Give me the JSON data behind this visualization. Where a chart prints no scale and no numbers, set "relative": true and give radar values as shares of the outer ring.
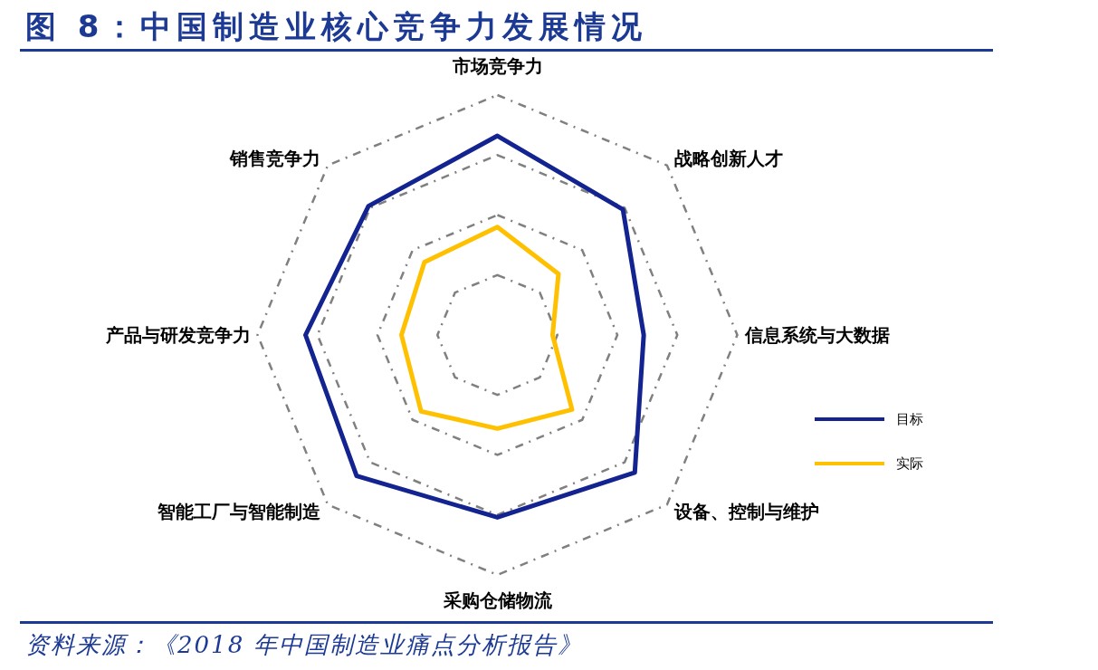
{
  "chart_data": {
    "type": "radar",
    "title": "图 8：中国制造业核心竞争力发展情况",
    "categories": [
      "市场竞争力",
      "战略创新人才",
      "信息系统与大数据",
      "设备、控制与维护",
      "采购仓储物流",
      "智能工厂与智能制造",
      "产品与研发竞争力",
      "销售竞争力"
    ],
    "relative": true,
    "series": [
      {
        "name": "目标",
        "color": "#13238f",
        "values": [
          0.83,
          0.74,
          0.61,
          0.81,
          0.76,
          0.83,
          0.8,
          0.76
        ]
      },
      {
        "name": "实际",
        "color": "#ffc000",
        "values": [
          0.45,
          0.36,
          0.23,
          0.44,
          0.39,
          0.45,
          0.4,
          0.43
        ]
      }
    ],
    "grid": true,
    "legend": "right",
    "annotations": [
      "资料来源：《2018 年中国制造业痛点分析报告》"
    ]
  }
}
